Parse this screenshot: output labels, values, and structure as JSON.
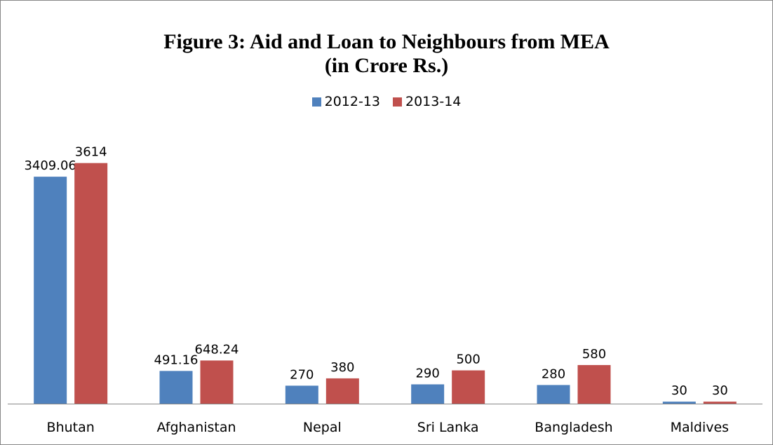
{
  "chart_data": {
    "type": "bar",
    "title_lines": [
      "Figure 3: Aid and Loan to Neighbours from MEA",
      "(in Crore Rs.)"
    ],
    "categories": [
      "Bhutan",
      "Afghanistan",
      "Nepal",
      "Sri Lanka",
      "Bangladesh",
      "Maldives"
    ],
    "series": [
      {
        "name": "2012-13",
        "color": "#4f81bd",
        "values": [
          3409.06,
          491.16,
          270,
          290,
          280,
          30
        ],
        "labels": [
          "3409.06",
          "491.16",
          "270",
          "290",
          "280",
          "30"
        ]
      },
      {
        "name": "2013-14",
        "color": "#c0504d",
        "values": [
          3614,
          648.24,
          380,
          500,
          580,
          30
        ],
        "labels": [
          "3614",
          "648.24",
          "380",
          "500",
          "580",
          "30"
        ]
      }
    ],
    "xlabel": "",
    "ylabel": "",
    "ylim": [
      0,
      4000
    ],
    "y_axis_visible": false,
    "grid": false,
    "legend_position": "top"
  }
}
